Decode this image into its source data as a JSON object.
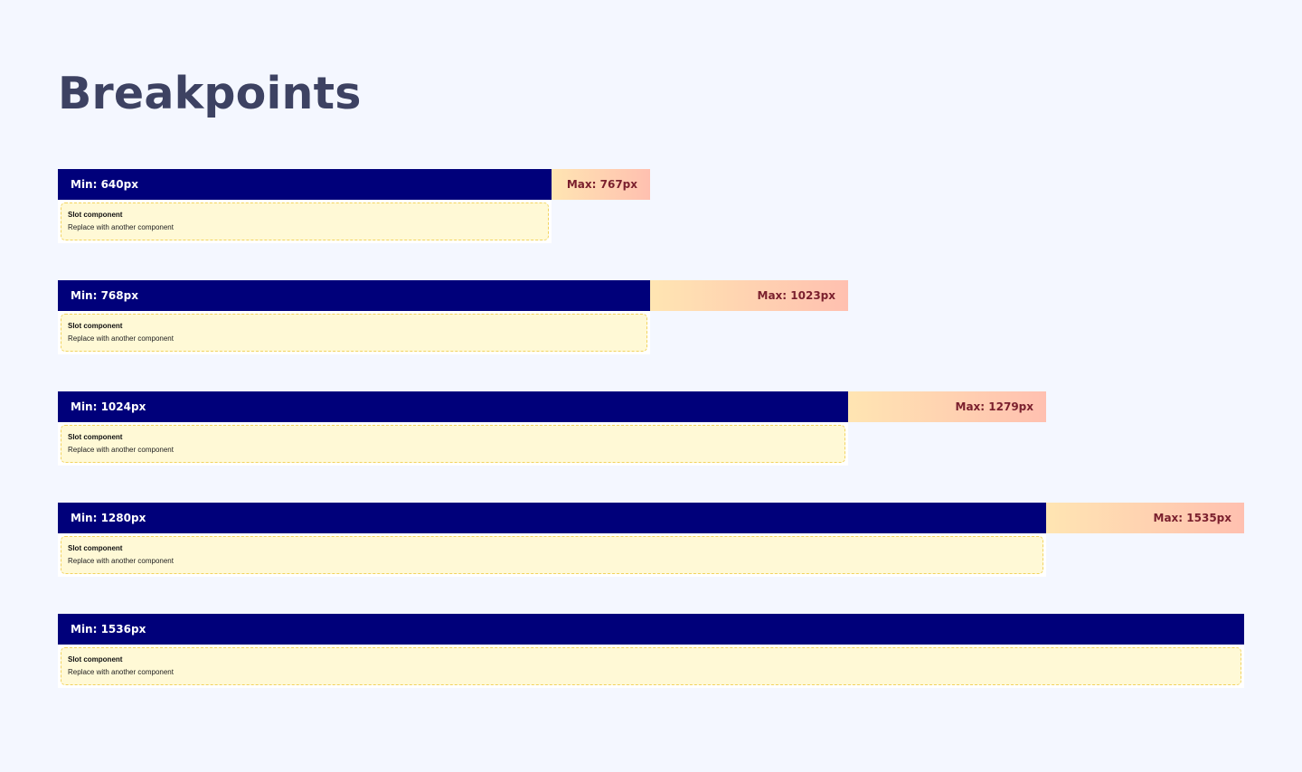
{
  "page": {
    "title": "Breakpoints"
  },
  "breakpoints": [
    {
      "min_label": "Min: 640px",
      "max_label": "Max: 767px",
      "slot_title": "Slot component",
      "slot_description": "Replace with another component"
    },
    {
      "min_label": "Min: 768px",
      "max_label": "Max: 1023px",
      "slot_title": "Slot component",
      "slot_description": "Replace with another component"
    },
    {
      "min_label": "Min: 1024px",
      "max_label": "Max: 1279px",
      "slot_title": "Slot component",
      "slot_description": "Replace with another component"
    },
    {
      "min_label": "Min: 1280px",
      "max_label": "Max: 1535px",
      "slot_title": "Slot component",
      "slot_description": "Replace with another component"
    },
    {
      "min_label": "Min: 1536px",
      "slot_title": "Slot component",
      "slot_description": "Replace with another component"
    }
  ],
  "colors": {
    "background": "#f4f7ff",
    "title": "#3d4262",
    "min_bar": "#00007a",
    "max_bar_start": "#ffe5b2",
    "max_bar_end": "#ffc0b0",
    "max_text": "#7a1f2d",
    "slot_fill": "#fff9d6",
    "slot_border": "#f2d35f"
  }
}
